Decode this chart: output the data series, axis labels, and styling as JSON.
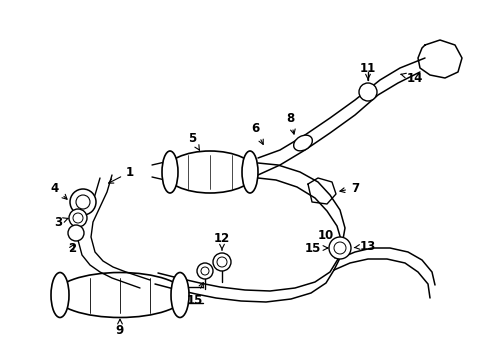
{
  "bg_color": "#ffffff",
  "line_color": "#000000",
  "lw": 1.0,
  "figsize": [
    4.89,
    3.6
  ],
  "dpi": 100
}
